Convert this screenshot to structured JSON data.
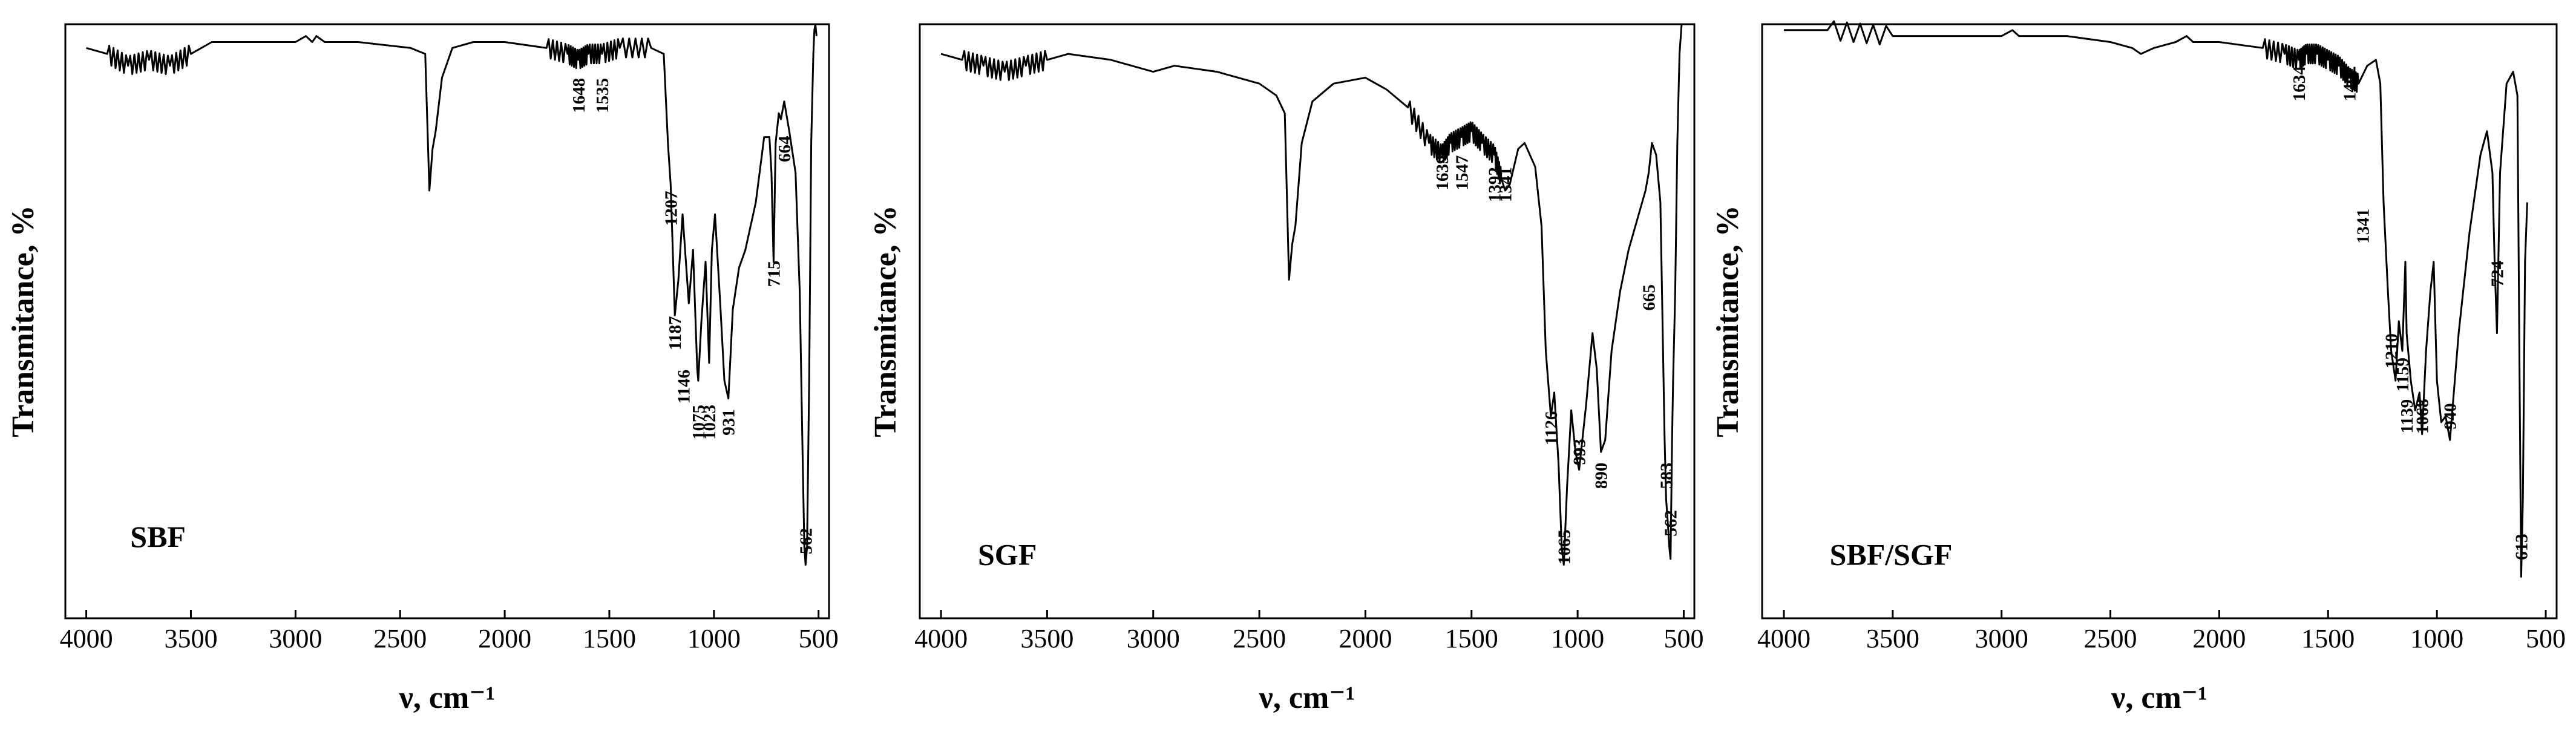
{
  "chart_data": [
    {
      "type": "line",
      "name": "SBF",
      "xlabel": "ν, cm⁻¹",
      "ylabel": "Transmitance, %",
      "xlim": [
        4100,
        450
      ],
      "x_reversed": true,
      "x_ticks": [
        4000,
        3500,
        3000,
        2500,
        2000,
        1500,
        1000,
        500
      ],
      "ylim": [
        0,
        100
      ],
      "y_ticks_shown": false,
      "series": [
        {
          "x": [
            4000,
            3900,
            3800,
            3700,
            3600,
            3500,
            3400,
            3200,
            3000,
            2950,
            2920,
            2900,
            2860,
            2700,
            2450,
            2380,
            2360,
            2345,
            2330,
            2300,
            2250,
            2150,
            2000,
            1800,
            1700,
            1648,
            1600,
            1535,
            1450,
            1300,
            1240,
            1220,
            1207,
            1195,
            1187,
            1170,
            1150,
            1146,
            1120,
            1100,
            1080,
            1075,
            1060,
            1040,
            1023,
            1010,
            995,
            970,
            950,
            931,
            910,
            880,
            850,
            800,
            760,
            735,
            725,
            715,
            705,
            690,
            680,
            664,
            640,
            610,
            590,
            575,
            568,
            562,
            555,
            545,
            535,
            525,
            520,
            515,
            510
          ],
          "y": [
            96,
            95,
            93,
            94,
            93,
            95,
            97,
            97,
            97,
            98,
            97,
            98,
            97,
            97,
            96,
            95,
            72,
            79,
            82,
            91,
            96,
            97,
            97,
            96,
            95,
            94,
            95,
            95,
            96,
            96,
            95,
            80,
            73,
            60,
            51,
            57,
            68,
            66,
            53,
            62,
            42,
            40,
            50,
            60,
            43,
            62,
            68,
            53,
            40,
            37,
            52,
            59,
            62,
            70,
            81,
            81,
            75,
            60,
            80,
            85,
            84,
            87,
            82,
            75,
            55,
            25,
            12,
            9,
            12,
            40,
            80,
            95,
            99,
            100,
            98
          ]
        }
      ],
      "peak_labels": [
        "1648",
        "1535",
        "1207",
        "1187",
        "1146",
        "1075",
        "1023",
        "931",
        "715",
        "664",
        "562"
      ]
    },
    {
      "type": "line",
      "name": "SGF",
      "xlabel": "ν, cm⁻¹",
      "ylabel": "Transmitance, %",
      "xlim": [
        4100,
        450
      ],
      "x_reversed": true,
      "x_ticks": [
        4000,
        3500,
        3000,
        2500,
        2000,
        1500,
        1000,
        500
      ],
      "ylim": [
        0,
        100
      ],
      "y_ticks_shown": false,
      "series": [
        {
          "x": [
            4000,
            3900,
            3800,
            3700,
            3600,
            3500,
            3400,
            3200,
            3000,
            2900,
            2700,
            2500,
            2420,
            2380,
            2360,
            2345,
            2330,
            2300,
            2250,
            2150,
            2000,
            1900,
            1800,
            1700,
            1639,
            1600,
            1547,
            1500,
            1450,
            1392,
            1360,
            1341,
            1320,
            1280,
            1250,
            1200,
            1170,
            1150,
            1126,
            1110,
            1090,
            1075,
            1065,
            1050,
            1030,
            1010,
            993,
            960,
            930,
            910,
            890,
            870,
            840,
            800,
            760,
            720,
            680,
            665,
            650,
            630,
            610,
            600,
            590,
            583,
            575,
            568,
            562,
            555,
            550,
            540,
            530,
            520,
            510
          ],
          "y": [
            95,
            94,
            93,
            92,
            93,
            94,
            95,
            94,
            92,
            93,
            92,
            90,
            88,
            85,
            57,
            63,
            66,
            80,
            87,
            90,
            91,
            89,
            86,
            80,
            78,
            80,
            81,
            82,
            80,
            78,
            74,
            72,
            73,
            79,
            80,
            76,
            66,
            45,
            34,
            38,
            26,
            12,
            9,
            22,
            35,
            28,
            25,
            36,
            48,
            42,
            28,
            30,
            45,
            55,
            62,
            67,
            72,
            75,
            80,
            78,
            70,
            50,
            30,
            20,
            16,
            12,
            10,
            30,
            40,
            55,
            80,
            95,
            100
          ]
        }
      ],
      "peak_labels": [
        "1639",
        "1547",
        "1392",
        "1341",
        "1126",
        "1065",
        "993",
        "890",
        "665",
        "583",
        "562"
      ]
    },
    {
      "type": "line",
      "name": "SBF/SGF",
      "xlabel": "ν, cm⁻¹",
      "ylabel": "Transmitance, %",
      "xlim": [
        4100,
        450
      ],
      "x_reversed": true,
      "x_ticks": [
        4000,
        3500,
        3000,
        2500,
        2000,
        1500,
        1000,
        500
      ],
      "ylim": [
        0,
        100
      ],
      "y_ticks_shown": false,
      "series": [
        {
          "x": [
            4000,
            3800,
            3500,
            3200,
            3000,
            2950,
            2920,
            2880,
            2700,
            2500,
            2400,
            2360,
            2300,
            2200,
            2150,
            2120,
            2000,
            1800,
            1700,
            1634,
            1600,
            1550,
            1500,
            1450,
            1402,
            1360,
            1320,
            1280,
            1260,
            1245,
            1225,
            1210,
            1190,
            1175,
            1159,
            1145,
            1139,
            1120,
            1100,
            1080,
            1068,
            1050,
            1030,
            1015,
            1000,
            980,
            960,
            940,
            900,
            850,
            800,
            770,
            745,
            735,
            724,
            710,
            680,
            650,
            630,
            620,
            613,
            605,
            595,
            585
          ],
          "y": [
            99,
            99,
            98,
            98,
            98,
            99,
            98,
            98,
            98,
            97,
            96,
            95,
            96,
            97,
            98,
            97,
            97,
            96,
            95,
            94,
            95,
            95,
            94,
            93,
            91,
            90,
            93,
            94,
            90,
            70,
            55,
            45,
            40,
            50,
            45,
            60,
            48,
            40,
            35,
            38,
            31,
            45,
            55,
            60,
            40,
            33,
            34,
            30,
            48,
            65,
            78,
            82,
            75,
            60,
            48,
            75,
            90,
            92,
            88,
            40,
            7,
            20,
            60,
            70
          ],
          "_note_removed": true
        }
      ],
      "peak_labels": [
        "1634",
        "1402",
        "1341",
        "1210",
        "1159",
        "1139",
        "1068",
        "940",
        "724",
        "613"
      ]
    }
  ]
}
